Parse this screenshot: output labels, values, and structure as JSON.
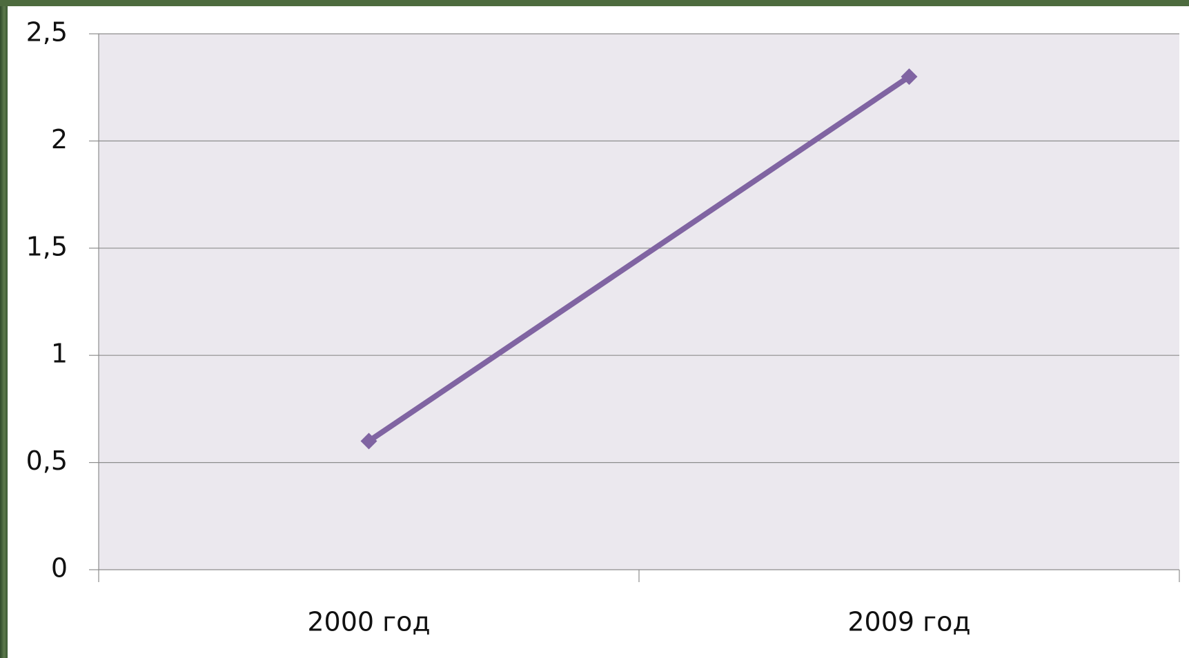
{
  "chart_data": {
    "type": "line",
    "categories": [
      "2000 год",
      "2009 год"
    ],
    "series": [
      {
        "color": "#8064a2",
        "values": [
          0.6,
          2.3
        ]
      }
    ],
    "ylim": [
      0,
      2.5
    ],
    "yticks": [
      0,
      {
        "value": 0.5,
        "label": "0,5"
      },
      1,
      {
        "value": 1.5,
        "label": "1,5"
      },
      2,
      {
        "value": 2.5,
        "label": "2,5"
      }
    ],
    "grid": true
  }
}
